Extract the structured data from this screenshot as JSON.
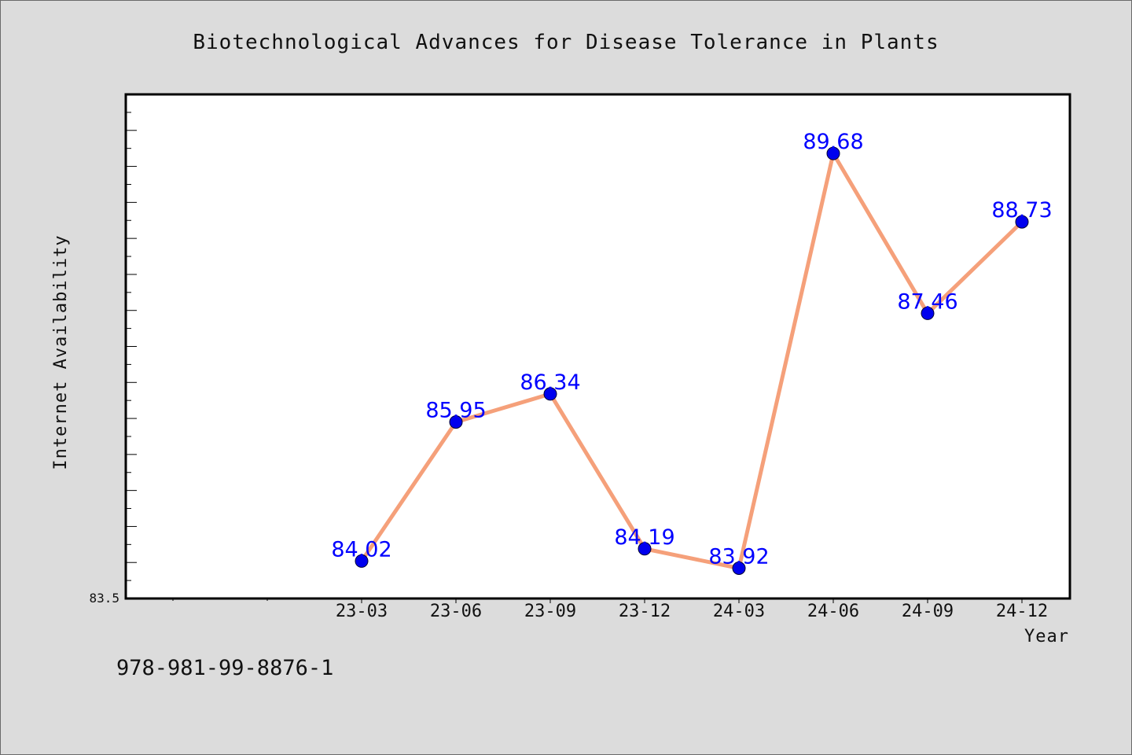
{
  "chart_data": {
    "type": "line",
    "title": "Biotechnological Advances for Disease Tolerance in Plants",
    "xlabel": "Year",
    "ylabel": "Internet Availability",
    "categories": [
      "23-03",
      "23-06",
      "23-09",
      "23-12",
      "24-03",
      "24-06",
      "24-09",
      "24-12"
    ],
    "series": [
      {
        "values": [
          84.02,
          85.95,
          86.34,
          84.19,
          83.92,
          89.68,
          87.46,
          88.73
        ]
      }
    ],
    "data_labels": [
      "84.02",
      "85.95",
      "86.34",
      "84.19",
      "83.92",
      "89.68",
      "87.46",
      "88.73"
    ],
    "ylim": [
      83.5,
      90.5
    ],
    "y_tick_labels": [
      "83.5"
    ],
    "grid": false,
    "colors": {
      "line": "#f5a07a",
      "marker": "#0000ee",
      "data_label": "#0000ff",
      "plot_bg": "#ffffff",
      "page_bg": "#dcdcdc"
    }
  },
  "footer": {
    "isbn": "978-981-99-8876-1"
  }
}
